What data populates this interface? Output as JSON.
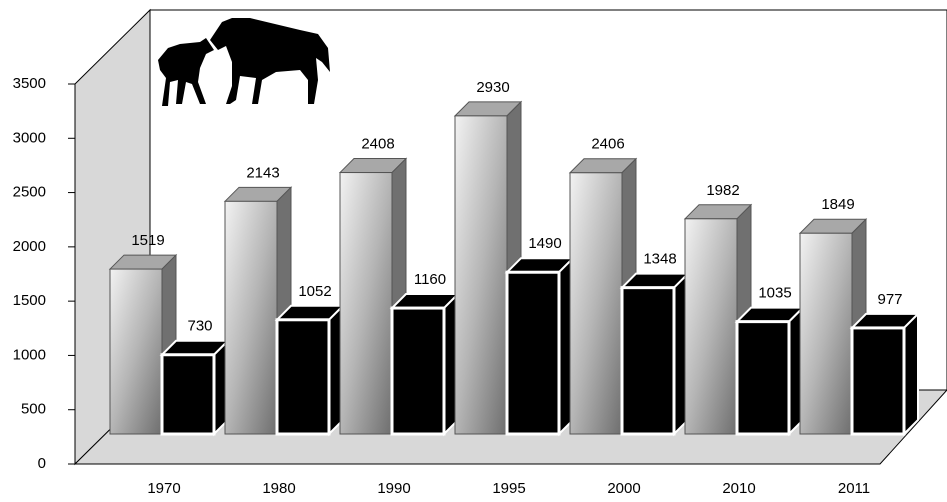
{
  "chart_data": {
    "type": "bar3d",
    "categories": [
      "1970",
      "1980",
      "1990",
      "1995",
      "2000",
      "2010",
      "2011"
    ],
    "series": [
      {
        "color": "#bdbdbd",
        "values": [
          1519,
          2143,
          2408,
          2930,
          2406,
          1982,
          1849
        ]
      },
      {
        "color": "#000000",
        "values": [
          730,
          1052,
          1160,
          1490,
          1348,
          1035,
          977
        ]
      }
    ],
    "ylim": [
      0,
      3500
    ],
    "yticks": [
      0,
      500,
      1000,
      1500,
      2000,
      2500,
      3000,
      3500
    ]
  }
}
